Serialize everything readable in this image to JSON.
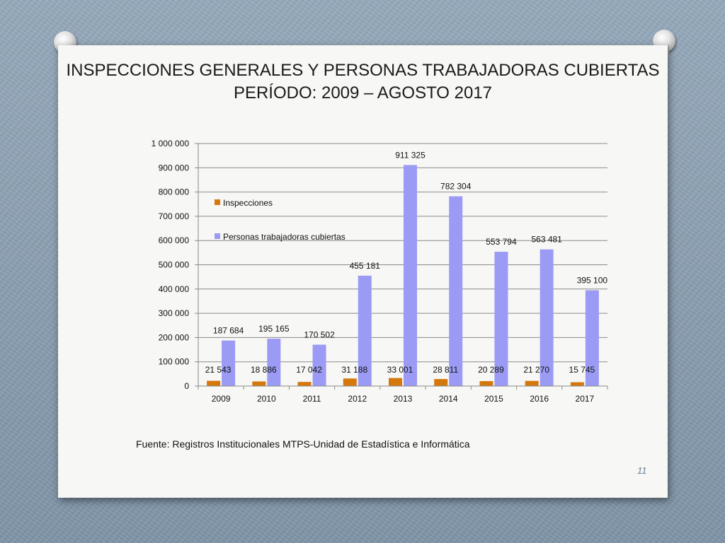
{
  "title_line1": "INSPECCIONES GENERALES Y PERSONAS TRABAJADORAS CUBIERTAS",
  "title_line2": "PERÍODO: 2009 – AGOSTO 2017",
  "source": "Fuente: Registros Institucionales MTPS-Unidad de Estadística e Informática",
  "page_number": "11",
  "colors": {
    "inspecciones": "#d5780c",
    "personas": "#9b9bf5",
    "grid": "#8a8a8a",
    "background": "#8ea3b5"
  },
  "chart_data": {
    "type": "bar",
    "categories": [
      "2009",
      "2010",
      "2011",
      "2012",
      "2013",
      "2014",
      "2015",
      "2016",
      "2017"
    ],
    "series": [
      {
        "name": "Inspecciones",
        "values": [
          21543,
          18886,
          17042,
          31188,
          33001,
          28811,
          20289,
          21270,
          15745
        ],
        "labels": [
          "21 543",
          "18 886",
          "17 042",
          "31 188",
          "33 001",
          "28 811",
          "20 289",
          "21 270",
          "15 745"
        ]
      },
      {
        "name": "Personas trabajadoras cubiertas",
        "values": [
          187684,
          195165,
          170502,
          455181,
          911325,
          782304,
          553794,
          563481,
          395100
        ],
        "labels": [
          "187 684",
          "195 165",
          "170 502",
          "455 181",
          "911 325",
          "782 304",
          "553 794",
          "563 481",
          "395 100"
        ]
      }
    ],
    "ylim": [
      0,
      1000000
    ],
    "yticks": [
      0,
      100000,
      200000,
      300000,
      400000,
      500000,
      600000,
      700000,
      800000,
      900000,
      1000000
    ],
    "ytick_labels": [
      "0",
      "100 000",
      "200 000",
      "300 000",
      "400 000",
      "500 000",
      "600 000",
      "700 000",
      "800 000",
      "900 000",
      "1 000 000"
    ],
    "grid": true,
    "legend_position": "top-left"
  }
}
